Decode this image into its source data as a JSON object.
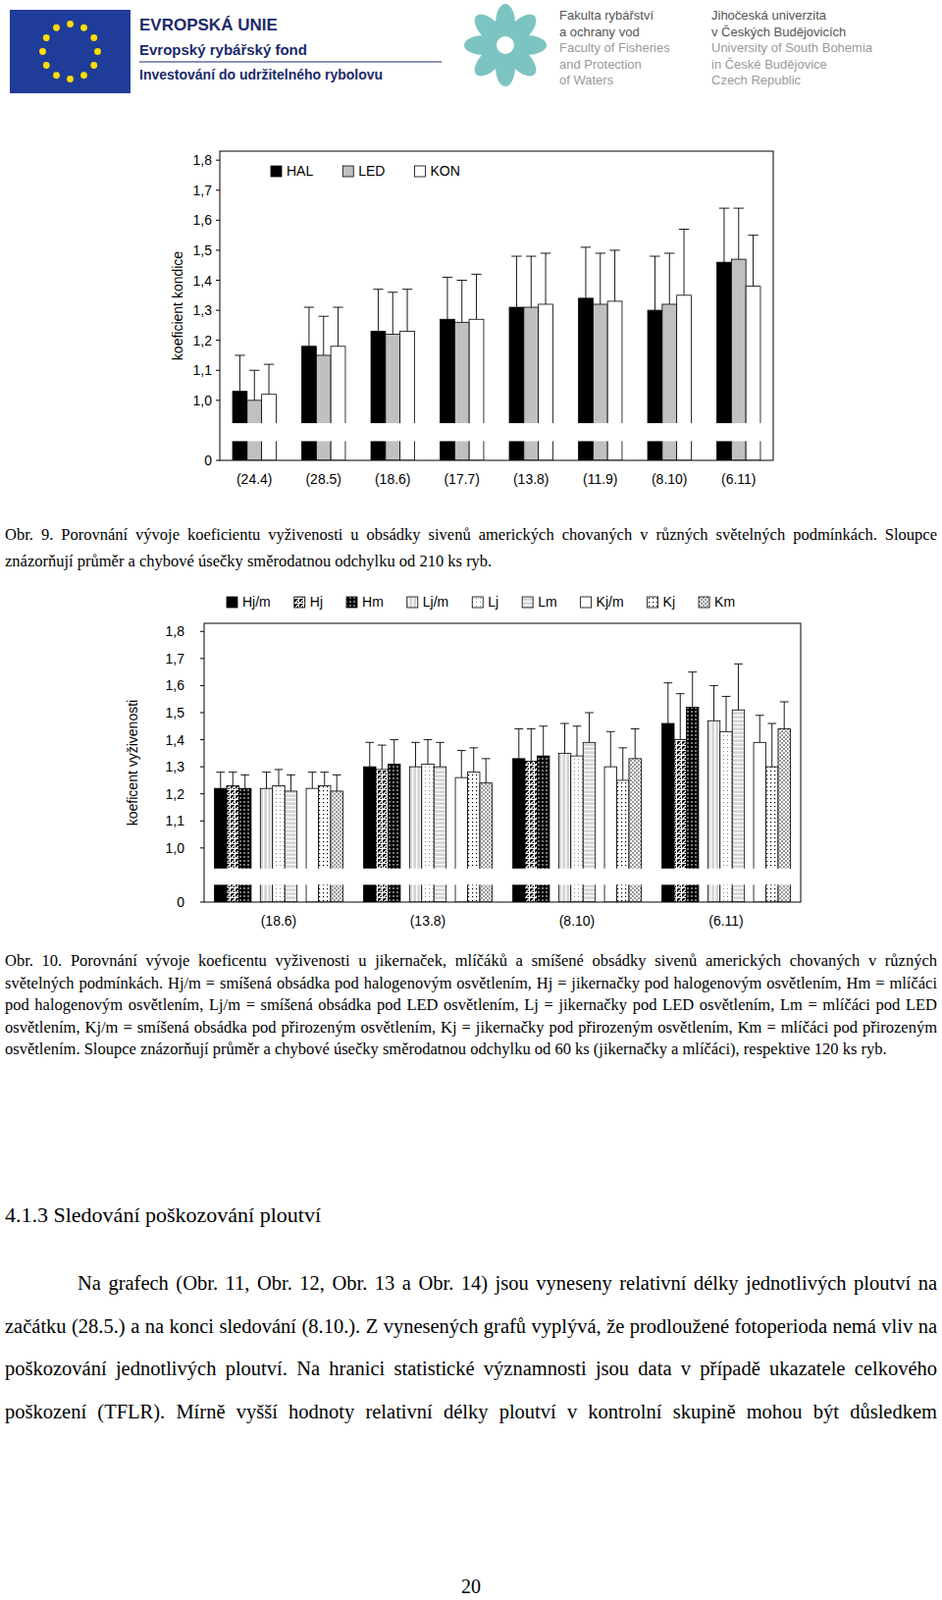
{
  "chart_data": [
    {
      "type": "bar",
      "y_label": "koeficient kondice",
      "categories": [
        "(24.4)",
        "(28.5)",
        "(18.6)",
        "(17.7)",
        "(13.8)",
        "(11.9)",
        "(8.10)",
        "(6.11)"
      ],
      "series": [
        {
          "name": "HAL",
          "color": "#000000",
          "values": [
            1.03,
            1.18,
            1.23,
            1.27,
            1.31,
            1.34,
            1.3,
            1.46
          ],
          "errors": [
            0.12,
            0.13,
            0.14,
            0.14,
            0.17,
            0.17,
            0.18,
            0.18
          ]
        },
        {
          "name": "LED",
          "color": "#c0c0c0",
          "values": [
            1.0,
            1.15,
            1.22,
            1.26,
            1.31,
            1.32,
            1.32,
            1.47
          ],
          "errors": [
            0.1,
            0.13,
            0.14,
            0.14,
            0.17,
            0.17,
            0.17,
            0.17
          ]
        },
        {
          "name": "KON",
          "color": "#ffffff",
          "values": [
            1.02,
            1.18,
            1.23,
            1.27,
            1.32,
            1.33,
            1.35,
            1.38
          ],
          "errors": [
            0.1,
            0.13,
            0.14,
            0.15,
            0.17,
            0.17,
            0.22,
            0.17
          ]
        }
      ],
      "ylim": [
        0,
        1.83
      ],
      "yticks": [
        0,
        {
          "value": 1.0,
          "label": "1,0"
        },
        {
          "value": 1.1,
          "label": "1,1"
        },
        {
          "value": 1.2,
          "label": "1,2"
        },
        {
          "value": 1.3,
          "label": "1,3"
        },
        {
          "value": 1.4,
          "label": "1,4"
        },
        {
          "value": 1.5,
          "label": "1,5"
        },
        {
          "value": 1.6,
          "label": "1,6"
        },
        {
          "value": 1.7,
          "label": "1,7"
        },
        {
          "value": 1.8,
          "label": "1,8"
        }
      ],
      "grid": false,
      "legend": "top-left"
    },
    {
      "type": "bar",
      "y_label": "koeficent vyživenosti",
      "categories": [
        "(18.6)",
        "(13.8)",
        "(8.10)",
        "(6.11)"
      ],
      "series": [
        {
          "name": "Hj/m",
          "color": "#000000",
          "values": [
            1.22,
            1.3,
            1.33,
            1.46
          ],
          "errors": [
            0.06,
            0.09,
            0.11,
            0.15
          ]
        },
        {
          "name": "Hj",
          "color": "#000000",
          "values": [
            1.23,
            1.29,
            1.32,
            1.4
          ],
          "errors": [
            0.05,
            0.09,
            0.12,
            0.17
          ]
        },
        {
          "name": "Hm",
          "color": "#000000",
          "values": [
            1.22,
            1.31,
            1.34,
            1.52
          ],
          "errors": [
            0.05,
            0.09,
            0.11,
            0.13
          ]
        },
        {
          "name": "Lj/m",
          "color": "#d4d4d4",
          "values": [
            1.22,
            1.3,
            1.35,
            1.47
          ],
          "errors": [
            0.06,
            0.09,
            0.11,
            0.13
          ]
        },
        {
          "name": "Lj",
          "color": "#ffffff",
          "values": [
            1.23,
            1.31,
            1.34,
            1.43
          ],
          "errors": [
            0.06,
            0.09,
            0.11,
            0.13
          ]
        },
        {
          "name": "Lm",
          "color": "#d4d4d4",
          "values": [
            1.21,
            1.3,
            1.39,
            1.51
          ],
          "errors": [
            0.06,
            0.09,
            0.11,
            0.17
          ]
        },
        {
          "name": "Kj/m",
          "color": "#ffffff",
          "values": [
            1.22,
            1.26,
            1.3,
            1.39
          ],
          "errors": [
            0.06,
            0.1,
            0.13,
            0.1
          ]
        },
        {
          "name": "Kj",
          "color": "#ffffff",
          "values": [
            1.23,
            1.28,
            1.25,
            1.3
          ],
          "errors": [
            0.05,
            0.09,
            0.12,
            0.16
          ]
        },
        {
          "name": "Km",
          "color": "#ffffff",
          "values": [
            1.21,
            1.24,
            1.33,
            1.44
          ],
          "errors": [
            0.06,
            0.09,
            0.11,
            0.1
          ]
        }
      ],
      "ylim": [
        0,
        1.83
      ],
      "yticks": [
        0,
        {
          "value": 1.0,
          "label": "1,0"
        },
        {
          "value": 1.1,
          "label": "1,1"
        },
        {
          "value": 1.2,
          "label": "1,2"
        },
        {
          "value": 1.3,
          "label": "1,3"
        },
        {
          "value": 1.4,
          "label": "1,4"
        },
        {
          "value": 1.5,
          "label": "1,5"
        },
        {
          "value": 1.6,
          "label": "1,6"
        },
        {
          "value": 1.7,
          "label": "1,7"
        },
        {
          "value": 1.8,
          "label": "1,8"
        }
      ],
      "grid": false,
      "legend": "top"
    }
  ],
  "document": {
    "header": {
      "eu": [
        "EVROPSKÁ UNIE",
        "Evropský rybářský fond",
        "Investování do udržitelného rybolovu"
      ],
      "faculty": [
        "Fakulta rybářství",
        "a ochrany vod",
        "Faculty of Fisheries",
        "and Protection",
        "of Waters"
      ],
      "university": [
        "Jihočeská univerzita",
        "v Českých Budějovicích",
        "University of South Bohemia",
        "in České Budějovice",
        "Czech Republic"
      ]
    },
    "captions": [
      "Obr. 9. Porovnání vývoje koeficientu vyživenosti u obsádky sivenů amerických chovaných v různých světelných podmínkách. Sloupce znázorňují průměr a chybové úsečky směrodatnou odchylku od 210 ks ryb.",
      "Obr. 10. Porovnání vývoje koeficentu vyživenosti u jikernaček, mlíčáků a smíšené obsádky sivenů amerických chovaných v různých světelných podmínkách. Hj/m = smíšená obsádka pod halogenovým osvětlením, Hj = jikernačky pod halogenovým osvětlením, Hm = mlíčáci pod halogenovým osvětlením, Lj/m = smíšená obsádka pod LED osvětlením, Lj = jikernačky pod LED osvětlením, Lm = mlíčáci pod LED osvětlením, Kj/m = smíšená obsádka pod přirozeným osvětlením, Kj = jikernačky pod přirozeným osvětlením, Km = mlíčáci pod přirozeným osvětlením. Sloupce znázorňují průměr a chybové úsečky směrodatnou odchylku od 60 ks (jikernačky a mlíčáci), respektive 120 ks ryb."
    ],
    "section_title": "4.1.3 Sledování poškozování ploutví",
    "paragraph": "Na grafech (Obr. 11, Obr. 12, Obr. 13 a Obr. 14) jsou vyneseny relativní délky jednotlivých ploutví na začátku (28.5.) a na konci sledování (8.10.). Z vynesených grafů vyplývá, že prodloužené fotoperioda nemá vliv na poškozování jednotlivých ploutví. Na hranici statistické významnosti jsou data v případě ukazatele celkového poškození (TFLR). Mírně vyšší hodnoty relativní délky ploutví v kontrolní skupině mohou být důsledkem",
    "page_number": "20"
  }
}
